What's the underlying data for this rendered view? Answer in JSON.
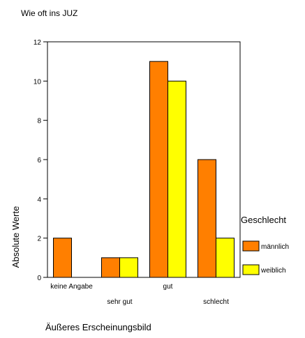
{
  "chart_data": {
    "type": "bar",
    "title": "Wie oft ins JUZ",
    "xlabel": "Äußeres Erscheinungsbild",
    "ylabel": "Absolute Werte",
    "categories": [
      "keine Angabe",
      "sehr gut",
      "gut",
      "schlecht"
    ],
    "series": [
      {
        "name": "männlich",
        "values": [
          2,
          1,
          11,
          6
        ],
        "color": "#ff7f00"
      },
      {
        "name": "weiblich",
        "values": [
          0,
          1,
          10,
          2
        ],
        "color": "#ffff00"
      }
    ],
    "ylim": [
      0,
      12
    ],
    "yticks": [
      0,
      2,
      4,
      6,
      8,
      10,
      12
    ],
    "legend_title": "Geschlecht",
    "legend_position": "right",
    "grid": false
  }
}
